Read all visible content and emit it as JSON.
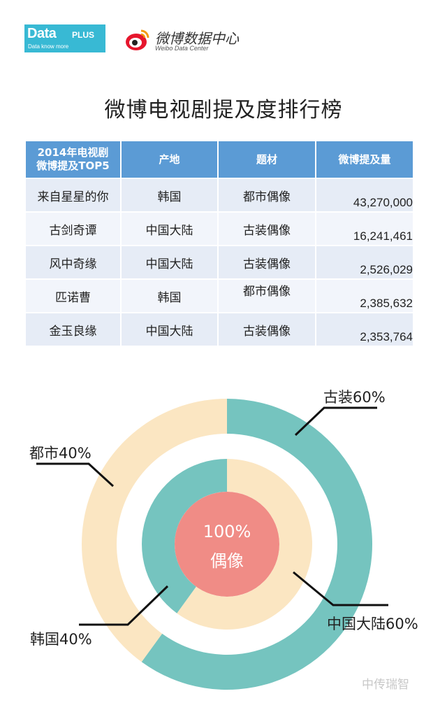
{
  "header": {
    "dataplus_logo_main": "Data",
    "dataplus_logo_plus": "PLUS",
    "dataplus_tagline": "Data know more",
    "weibo_logo_title": "微博数据中心",
    "weibo_logo_sub": "Weibo Data Center"
  },
  "title": "微博电视剧提及度排行榜",
  "table": {
    "header_line1": "2014年电视剧",
    "header_line2": "微博提及TOP5",
    "col_origin": "产地",
    "col_genre": "题材",
    "col_mentions": "微博提及量",
    "rows": [
      {
        "name": "来自星星的你",
        "origin": "韩国",
        "genre": "都市偶像",
        "mentions": "43,270,000"
      },
      {
        "name": "古剑奇谭",
        "origin": "中国大陆",
        "genre": "古装偶像",
        "mentions": "16,241,461"
      },
      {
        "name": "风中奇缘",
        "origin": "中国大陆",
        "genre": "古装偶像",
        "mentions": "2,526,029"
      },
      {
        "name": "匹诺曹",
        "origin": "韩国",
        "genre": "都市偶像",
        "mentions": "2,385,632"
      },
      {
        "name": "金玉良缘",
        "origin": "中国大陆",
        "genre": "古装偶像",
        "mentions": "2,353,764"
      }
    ]
  },
  "chart_data": {
    "type": "pie",
    "center_text": [
      "100%",
      "偶像"
    ],
    "rings": [
      {
        "ring": "outer",
        "slices": [
          {
            "label": "古装60%",
            "value": 60,
            "color": "#75c4bf"
          },
          {
            "label": "都市40%",
            "value": 40,
            "color": "#fbe6c2"
          }
        ]
      },
      {
        "ring": "inner",
        "slices": [
          {
            "label": "中国大陆60%",
            "value": 60,
            "color": "#fbe6c2"
          },
          {
            "label": "韩国40%",
            "value": 40,
            "color": "#75c4bf"
          }
        ]
      }
    ],
    "center_color": "#f08c86"
  },
  "watermark": "中传瑞智"
}
